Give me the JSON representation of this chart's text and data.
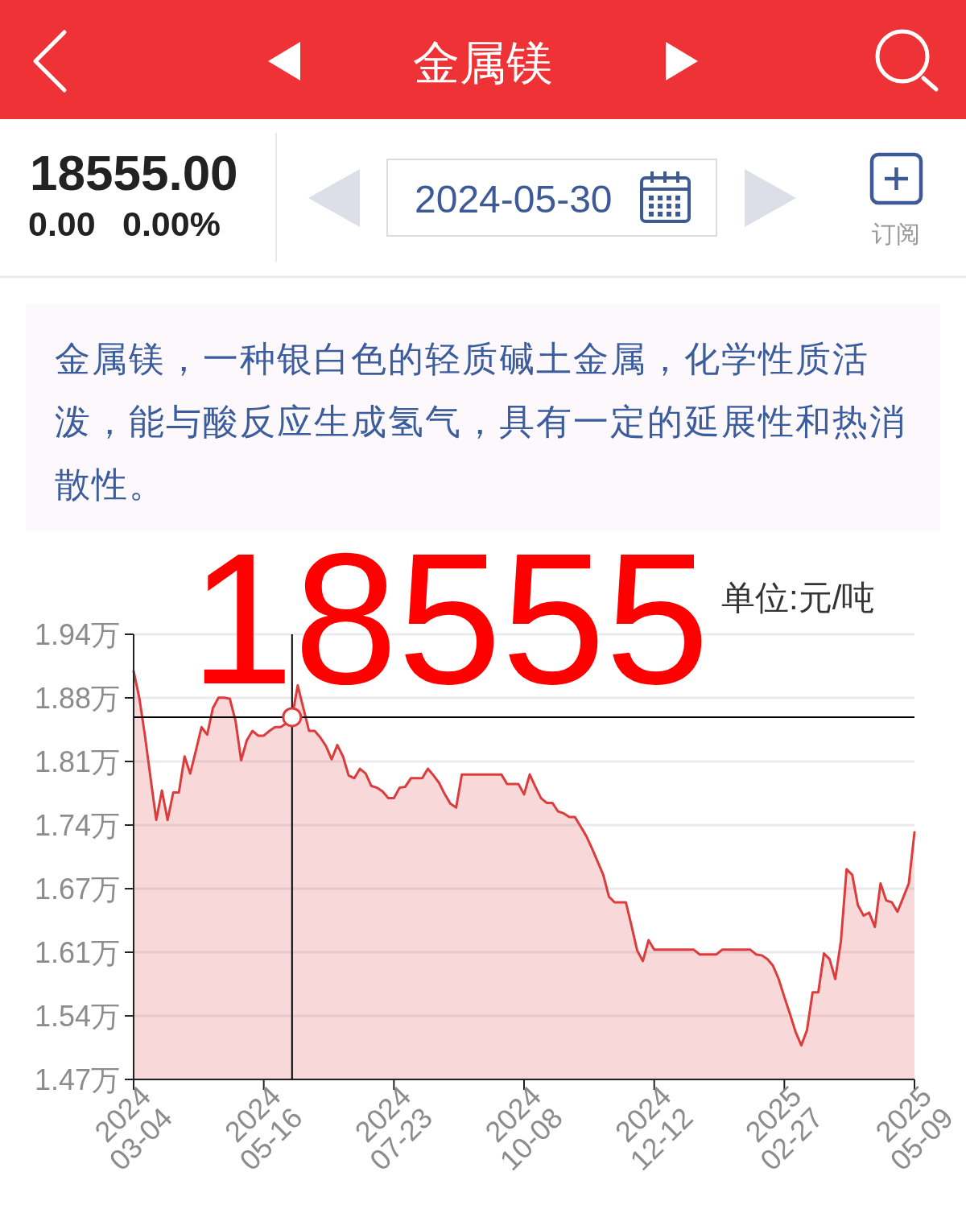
{
  "chart_data": {
    "type": "area",
    "title": "金属镁",
    "subtitle": "金属镁，一种银白色的轻质碱土金属，化学性质活泼，能与酸反应生成氢气，具有一定的延展性和热消散性。",
    "annotations": [
      "18555.00",
      "0.00",
      "0.00%",
      "2024-05-30",
      "订阅",
      "18555",
      "单位:元/吨"
    ],
    "categories": [
      "2024\n03-04",
      null,
      null,
      null,
      null,
      null,
      null,
      null,
      null,
      null,
      null,
      null,
      null,
      null,
      null,
      null,
      null,
      null,
      null,
      null,
      null,
      null,
      null,
      "2024\n05-16",
      null,
      null,
      null,
      null,
      null,
      null,
      null,
      null,
      null,
      null,
      null,
      null,
      null,
      null,
      null,
      null,
      null,
      null,
      null,
      null,
      null,
      null,
      "2024\n07-23",
      null,
      null,
      null,
      null,
      null,
      null,
      null,
      null,
      null,
      null,
      null,
      null,
      null,
      null,
      null,
      null,
      null,
      null,
      null,
      null,
      null,
      null,
      "2024\n10-08",
      null,
      null,
      null,
      null,
      null,
      null,
      null,
      null,
      null,
      null,
      null,
      null,
      null,
      null,
      null,
      null,
      null,
      null,
      null,
      null,
      null,
      null,
      "2024\n12-12",
      null,
      null,
      null,
      null,
      null,
      null,
      null,
      null,
      null,
      null,
      null,
      null,
      null,
      null,
      null,
      null,
      null,
      null,
      null,
      null,
      null,
      null,
      "2025\n02-27",
      null,
      null,
      null,
      null,
      null,
      null,
      null,
      null,
      null,
      null,
      null,
      null,
      null,
      null,
      null,
      null,
      null,
      null,
      null,
      null,
      null,
      null,
      "2025\n05-09"
    ],
    "series": [
      {
        "color": "#dc3c3c",
        "values": [
          1.904,
          1.876,
          1.836,
          1.791,
          1.747,
          1.778,
          1.747,
          1.776,
          1.776,
          1.814,
          1.796,
          1.82,
          1.845,
          1.837,
          1.865,
          1.876,
          1.876,
          1.875,
          1.852,
          1.81,
          1.831,
          1.841,
          1.836,
          1.836,
          1.841,
          1.845,
          1.845,
          1.849,
          1.8555,
          1.889,
          1.865,
          1.841,
          1.841,
          1.834,
          1.825,
          1.811,
          1.826,
          1.814,
          1.794,
          1.791,
          1.801,
          1.796,
          1.783,
          1.781,
          1.777,
          1.77,
          1.77,
          1.781,
          1.782,
          1.791,
          1.791,
          1.791,
          1.801,
          1.794,
          1.786,
          1.774,
          1.764,
          1.76,
          1.795,
          1.795,
          1.795,
          1.795,
          1.795,
          1.795,
          1.795,
          1.795,
          1.785,
          1.785,
          1.785,
          1.774,
          1.795,
          1.782,
          1.77,
          1.765,
          1.765,
          1.756,
          1.754,
          1.75,
          1.75,
          1.74,
          1.73,
          1.717,
          1.703,
          1.689,
          1.666,
          1.66,
          1.66,
          1.66,
          1.635,
          1.609,
          1.598,
          1.62,
          1.61,
          1.61,
          1.61,
          1.61,
          1.61,
          1.61,
          1.61,
          1.61,
          1.605,
          1.605,
          1.605,
          1.605,
          1.61,
          1.61,
          1.61,
          1.61,
          1.61,
          1.61,
          1.605,
          1.604,
          1.6,
          1.593,
          1.579,
          1.56,
          1.542,
          1.523,
          1.509,
          1.525,
          1.565,
          1.565,
          1.606,
          1.6,
          1.579,
          1.619,
          1.695,
          1.689,
          1.657,
          1.646,
          1.649,
          1.634,
          1.68,
          1.662,
          1.66,
          1.65,
          1.665,
          1.68,
          1.734
        ]
      }
    ],
    "ylim": [
      1.473,
      1.943
    ],
    "yticks": [
      {
        "value": 1.473,
        "label": "1.47万"
      },
      {
        "value": 1.5401,
        "label": "1.54万"
      },
      {
        "value": 1.6073,
        "label": "1.61万"
      },
      {
        "value": 1.6744,
        "label": "1.67万"
      },
      {
        "value": 1.7416,
        "label": "1.74万"
      },
      {
        "value": 1.8087,
        "label": "1.81万"
      },
      {
        "value": 1.8759,
        "label": "1.88万"
      },
      {
        "value": 1.943,
        "label": "1.94万"
      }
    ],
    "grid": "y",
    "ref_lines": [
      {
        "axis": "y",
        "value": 1.8555,
        "color": "#000000"
      }
    ]
  }
}
